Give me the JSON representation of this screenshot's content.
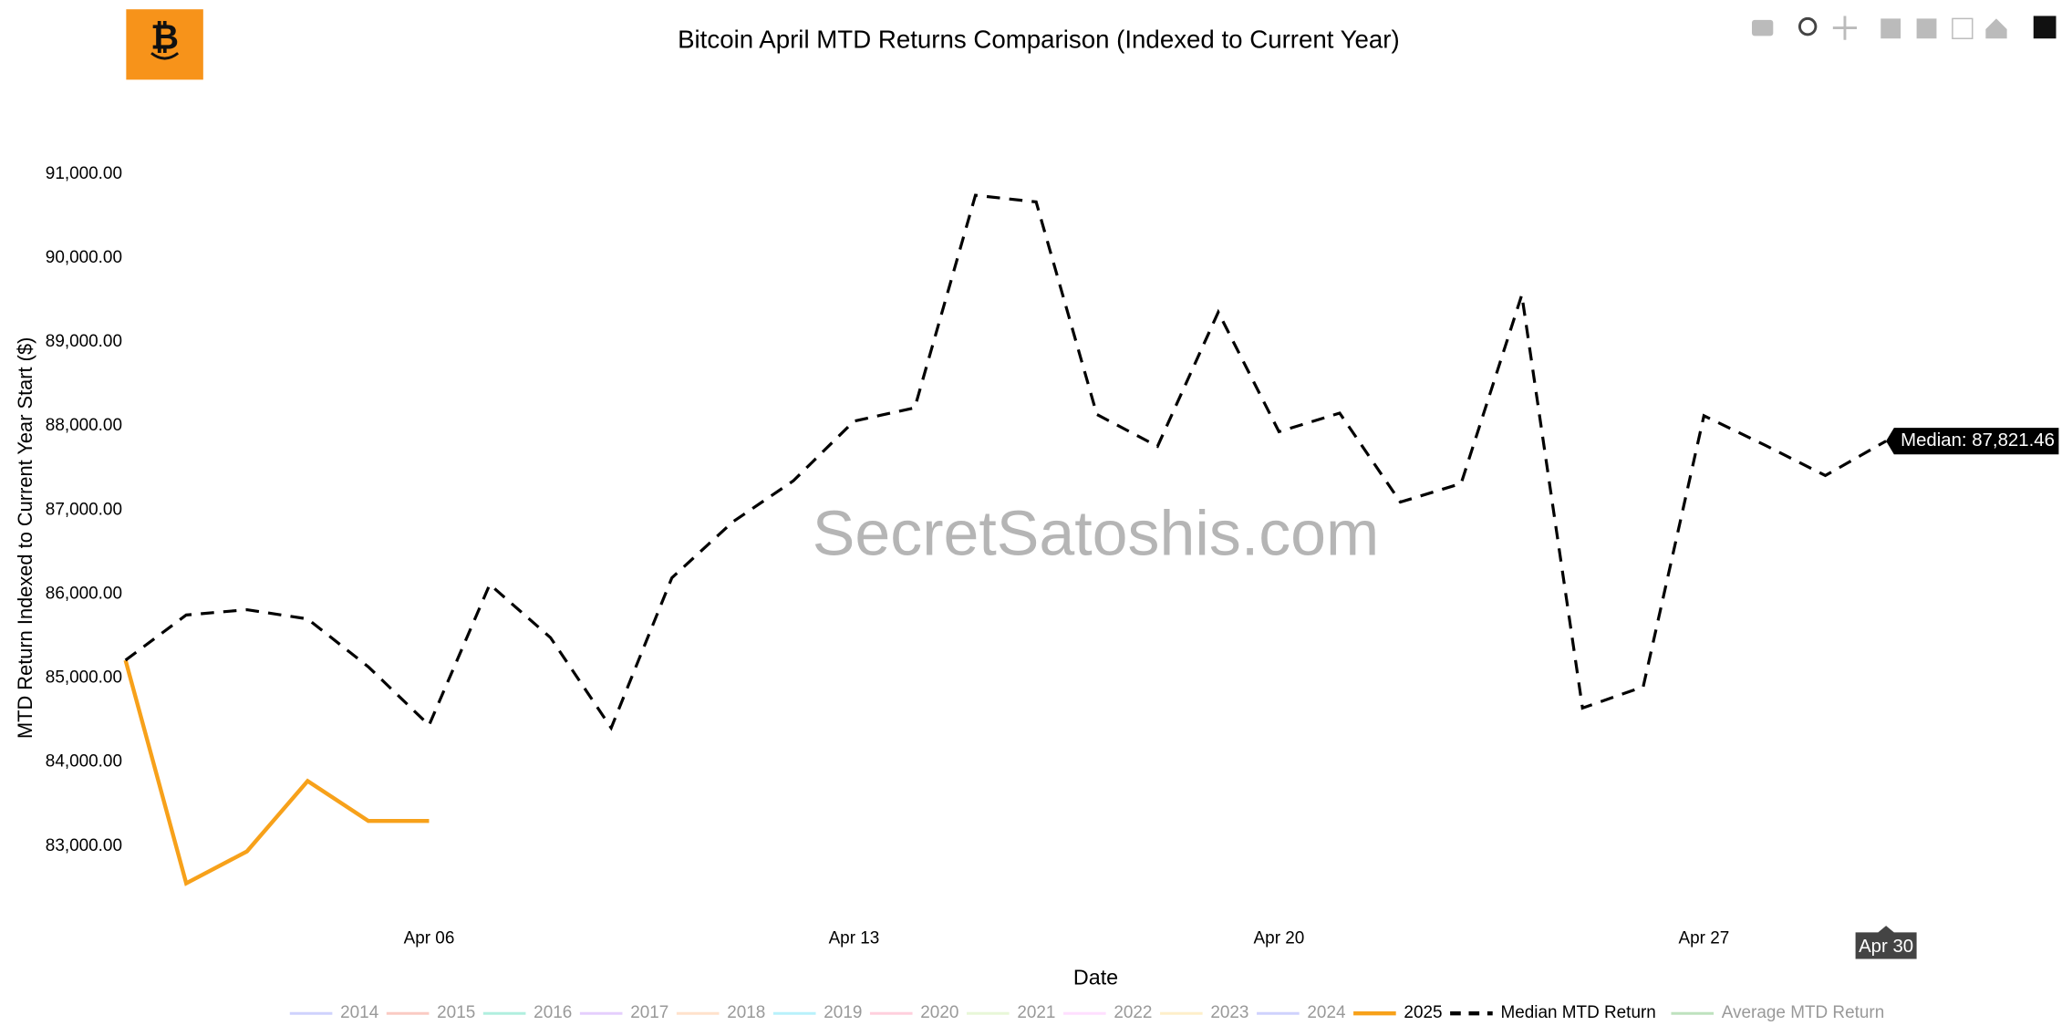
{
  "chart_data": {
    "type": "line",
    "title": "Bitcoin April MTD Returns Comparison (Indexed to Current Year)",
    "watermark": "SecretSatoshis.com",
    "x_label": "Date",
    "y_label": "MTD Return Indexed to Current Year Start ($)",
    "x": [
      "Apr 01",
      "Apr 02",
      "Apr 03",
      "Apr 04",
      "Apr 05",
      "Apr 06",
      "Apr 07",
      "Apr 08",
      "Apr 09",
      "Apr 10",
      "Apr 11",
      "Apr 12",
      "Apr 13",
      "Apr 14",
      "Apr 15",
      "Apr 16",
      "Apr 17",
      "Apr 18",
      "Apr 19",
      "Apr 20",
      "Apr 21",
      "Apr 22",
      "Apr 23",
      "Apr 24",
      "Apr 25",
      "Apr 26",
      "Apr 27",
      "Apr 28",
      "Apr 29",
      "Apr 30"
    ],
    "xticks": [
      "Apr 06",
      "Apr 13",
      "Apr 20",
      "Apr 27"
    ],
    "ylim": [
      82150,
      91500
    ],
    "yticks": [
      {
        "value": 83000,
        "label": "83,000.00"
      },
      {
        "value": 84000,
        "label": "84,000.00"
      },
      {
        "value": 85000,
        "label": "85,000.00"
      },
      {
        "value": 86000,
        "label": "86,000.00"
      },
      {
        "value": 87000,
        "label": "87,000.00"
      },
      {
        "value": 88000,
        "label": "88,000.00"
      },
      {
        "value": 89000,
        "label": "89,000.00"
      },
      {
        "value": 90000,
        "label": "90,000.00"
      },
      {
        "value": 91000,
        "label": "91,000.00"
      }
    ],
    "grid": false,
    "legend": "bottom",
    "series": [
      {
        "name": "2014",
        "color": "#636efa",
        "visible": "legendonly",
        "values": [
          null,
          null,
          null,
          null,
          null,
          null,
          null,
          null,
          null,
          null,
          null,
          null,
          null,
          null,
          null,
          null,
          null,
          null,
          null,
          null,
          null,
          null,
          null,
          null,
          null,
          null,
          null,
          null,
          null,
          null
        ]
      },
      {
        "name": "2015",
        "color": "#ef553b",
        "visible": "legendonly",
        "values": [
          null,
          null,
          null,
          null,
          null,
          null,
          null,
          null,
          null,
          null,
          null,
          null,
          null,
          null,
          null,
          null,
          null,
          null,
          null,
          null,
          null,
          null,
          null,
          null,
          null,
          null,
          null,
          null,
          null,
          null
        ]
      },
      {
        "name": "2016",
        "color": "#00cc96",
        "visible": "legendonly",
        "values": [
          null,
          null,
          null,
          null,
          null,
          null,
          null,
          null,
          null,
          null,
          null,
          null,
          null,
          null,
          null,
          null,
          null,
          null,
          null,
          null,
          null,
          null,
          null,
          null,
          null,
          null,
          null,
          null,
          null,
          null
        ]
      },
      {
        "name": "2017",
        "color": "#ab63fa",
        "visible": "legendonly",
        "values": [
          null,
          null,
          null,
          null,
          null,
          null,
          null,
          null,
          null,
          null,
          null,
          null,
          null,
          null,
          null,
          null,
          null,
          null,
          null,
          null,
          null,
          null,
          null,
          null,
          null,
          null,
          null,
          null,
          null,
          null
        ]
      },
      {
        "name": "2018",
        "color": "#ffa15a",
        "visible": "legendonly",
        "values": [
          null,
          null,
          null,
          null,
          null,
          null,
          null,
          null,
          null,
          null,
          null,
          null,
          null,
          null,
          null,
          null,
          null,
          null,
          null,
          null,
          null,
          null,
          null,
          null,
          null,
          null,
          null,
          null,
          null,
          null
        ]
      },
      {
        "name": "2019",
        "color": "#19d3f3",
        "visible": "legendonly",
        "values": [
          null,
          null,
          null,
          null,
          null,
          null,
          null,
          null,
          null,
          null,
          null,
          null,
          null,
          null,
          null,
          null,
          null,
          null,
          null,
          null,
          null,
          null,
          null,
          null,
          null,
          null,
          null,
          null,
          null,
          null
        ]
      },
      {
        "name": "2020",
        "color": "#ff6692",
        "visible": "legendonly",
        "values": [
          null,
          null,
          null,
          null,
          null,
          null,
          null,
          null,
          null,
          null,
          null,
          null,
          null,
          null,
          null,
          null,
          null,
          null,
          null,
          null,
          null,
          null,
          null,
          null,
          null,
          null,
          null,
          null,
          null,
          null
        ]
      },
      {
        "name": "2021",
        "color": "#b6e880",
        "visible": "legendonly",
        "values": [
          null,
          null,
          null,
          null,
          null,
          null,
          null,
          null,
          null,
          null,
          null,
          null,
          null,
          null,
          null,
          null,
          null,
          null,
          null,
          null,
          null,
          null,
          null,
          null,
          null,
          null,
          null,
          null,
          null,
          null
        ]
      },
      {
        "name": "2022",
        "color": "#ff97ff",
        "visible": "legendonly",
        "values": [
          null,
          null,
          null,
          null,
          null,
          null,
          null,
          null,
          null,
          null,
          null,
          null,
          null,
          null,
          null,
          null,
          null,
          null,
          null,
          null,
          null,
          null,
          null,
          null,
          null,
          null,
          null,
          null,
          null,
          null
        ]
      },
      {
        "name": "2023",
        "color": "#fecb52",
        "visible": "legendonly",
        "values": [
          null,
          null,
          null,
          null,
          null,
          null,
          null,
          null,
          null,
          null,
          null,
          null,
          null,
          null,
          null,
          null,
          null,
          null,
          null,
          null,
          null,
          null,
          null,
          null,
          null,
          null,
          null,
          null,
          null,
          null
        ]
      },
      {
        "name": "2024",
        "color": "#636efa",
        "visible": "legendonly",
        "values": [
          null,
          null,
          null,
          null,
          null,
          null,
          null,
          null,
          null,
          null,
          null,
          null,
          null,
          null,
          null,
          null,
          null,
          null,
          null,
          null,
          null,
          null,
          null,
          null,
          null,
          null,
          null,
          null,
          null,
          null
        ]
      },
      {
        "name": "2025",
        "color": "#f7a11a",
        "visible": true,
        "dash": "solid",
        "values": [
          85213,
          82557,
          82937,
          83775,
          83300,
          83300,
          null,
          null,
          null,
          null,
          null,
          null,
          null,
          null,
          null,
          null,
          null,
          null,
          null,
          null,
          null,
          null,
          null,
          null,
          null,
          null,
          null,
          null,
          null,
          null
        ]
      },
      {
        "name": "Median MTD Return",
        "color": "#000000",
        "visible": true,
        "dash": "dashed",
        "values": [
          85213,
          85751,
          85814,
          85704,
          85134,
          84439,
          86115,
          85482,
          84407,
          86194,
          86858,
          87348,
          88059,
          88217,
          90747,
          90668,
          88138,
          87759,
          89356,
          87933,
          88154,
          87095,
          87316,
          89561,
          84644,
          84897,
          88123,
          87775,
          87411,
          87821.46
        ]
      },
      {
        "name": "Average MTD Return",
        "color": "#2ca02c",
        "visible": "legendonly",
        "values": [
          null,
          null,
          null,
          null,
          null,
          null,
          null,
          null,
          null,
          null,
          null,
          null,
          null,
          null,
          null,
          null,
          null,
          null,
          null,
          null,
          null,
          null,
          null,
          null,
          null,
          null,
          null,
          null,
          null,
          null
        ]
      }
    ],
    "hover": {
      "series": 12,
      "index": 29,
      "label": "Median: 87,821.46",
      "x_label": "Apr 30"
    }
  }
}
